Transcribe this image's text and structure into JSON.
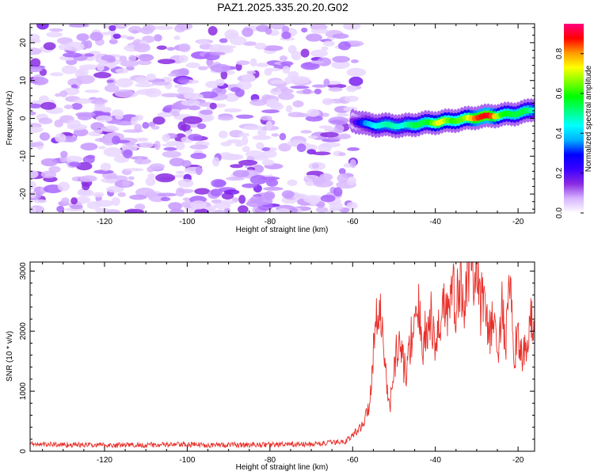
{
  "title": "PAZ1.2025.335.20.20.G02",
  "chart_data": [
    {
      "type": "heatmap",
      "name": "spectrogram",
      "xlabel": "Height of straight line (km)",
      "ylabel": "Frequency (Hz)",
      "xlim": [
        -138,
        -16
      ],
      "ylim": [
        -25,
        25
      ],
      "x_ticks": [
        -120,
        -100,
        -80,
        -60,
        -40,
        -20
      ],
      "x_tick_labels": [
        "-120",
        "-100",
        "-80",
        "-60",
        "-40",
        "-20"
      ],
      "y_ticks": [
        -20,
        -10,
        0,
        10,
        20
      ],
      "y_tick_labels": [
        "-20",
        "-10",
        "0",
        "10",
        "20"
      ],
      "noise_region": {
        "x_range": [
          -138,
          -59
        ],
        "description": "scattered low-amplitude purple noise"
      },
      "signal_ridge": {
        "x": [
          -60,
          -57,
          -54,
          -51,
          -48,
          -45,
          -42,
          -39,
          -36,
          -33,
          -30,
          -27,
          -24,
          -21,
          -18,
          -16
        ],
        "freq": [
          -0.5,
          -1.5,
          -1.8,
          -1.8,
          -2.0,
          -1.6,
          -1.2,
          -1.0,
          -0.6,
          -0.2,
          0.3,
          0.6,
          0.9,
          1.2,
          1.8,
          2.4
        ],
        "amplitude": [
          0.15,
          0.35,
          0.45,
          0.5,
          0.45,
          0.55,
          0.55,
          0.75,
          0.6,
          0.65,
          0.85,
          0.9,
          0.6,
          0.55,
          0.55,
          0.45
        ]
      },
      "colorbar": {
        "label": "Normalized spectral amplitude",
        "range": [
          0.0,
          0.95
        ],
        "ticks": [
          0.0,
          0.2,
          0.4,
          0.6,
          0.8
        ],
        "tick_labels": [
          "0.0",
          "0.2",
          "0.4",
          "0.6",
          "0.8"
        ],
        "colors": [
          "#ffffff",
          "#d6b4ff",
          "#8a2be2",
          "#3b00ff",
          "#0000ff",
          "#00b0ff",
          "#00ffff",
          "#00ff80",
          "#00ff00",
          "#80ff00",
          "#ffff00",
          "#ff9900",
          "#ff0000",
          "#ff007f"
        ]
      }
    },
    {
      "type": "line",
      "name": "snr",
      "xlabel": "Height of straight line (km)",
      "ylabel": "SNR (10 * v/v)",
      "xlim": [
        -138,
        -16
      ],
      "ylim": [
        0,
        3150
      ],
      "x_ticks": [
        -120,
        -100,
        -80,
        -60,
        -40,
        -20
      ],
      "x_tick_labels": [
        "-120",
        "-100",
        "-80",
        "-60",
        "-40",
        "-20"
      ],
      "y_ticks": [
        0,
        1000,
        2000,
        3000
      ],
      "y_tick_labels": [
        "0",
        "1000",
        "2000",
        "3000"
      ],
      "color": "#e8302a",
      "x": [
        -138,
        -130,
        -120,
        -110,
        -100,
        -90,
        -80,
        -70,
        -62,
        -60,
        -58,
        -57,
        -56,
        -55,
        -54,
        -53,
        -52,
        -51,
        -50,
        -49,
        -48,
        -47,
        -46,
        -45,
        -44,
        -43,
        -42,
        -41,
        -40,
        -39,
        -38,
        -37,
        -36,
        -35,
        -34,
        -33,
        -32,
        -31,
        -30,
        -29,
        -28,
        -27,
        -26,
        -25,
        -24,
        -23,
        -22,
        -21,
        -20,
        -19,
        -18,
        -17,
        -16
      ],
      "y": [
        120,
        110,
        100,
        105,
        110,
        105,
        110,
        115,
        160,
        260,
        420,
        520,
        800,
        1600,
        2600,
        2100,
        1300,
        700,
        1400,
        1800,
        1600,
        1200,
        1900,
        2000,
        2300,
        1800,
        2050,
        2200,
        1700,
        2100,
        2550,
        2300,
        2700,
        2400,
        2800,
        2600,
        3000,
        2800,
        3100,
        2400,
        2700,
        1900,
        2200,
        1600,
        2400,
        1800,
        2700,
        1500,
        2100,
        1400,
        1800,
        2100,
        2200
      ]
    }
  ]
}
